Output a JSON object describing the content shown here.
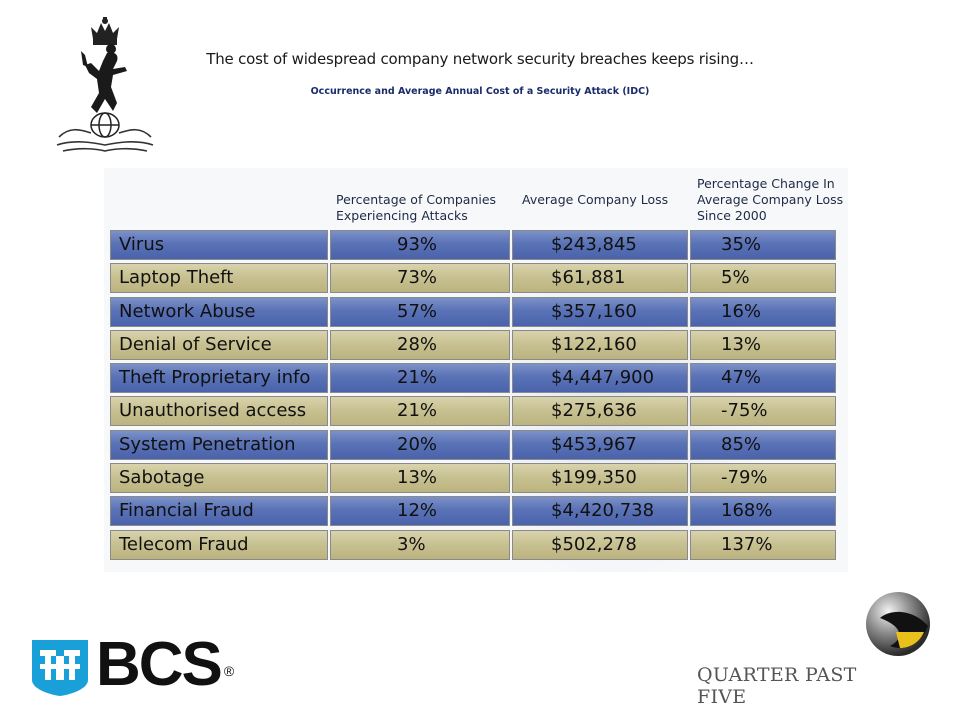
{
  "slide": {
    "title": "The cost of widespread company network security breaches keeps rising…",
    "subtitle": "Occurrence and Average Annual Cost of a Security Attack (IDC)"
  },
  "table": {
    "headers": [
      "Percentage of Companies Experiencing Attacks",
      "Average Company Loss",
      "Percentage Change In Average Company Loss Since 2000"
    ],
    "rows": [
      {
        "name": "Virus",
        "pct": "93%",
        "loss": "$243,845",
        "change": "35%",
        "color": "blue"
      },
      {
        "name": "Laptop Theft",
        "pct": "73%",
        "loss": "$61,881",
        "change": "5%",
        "color": "tan"
      },
      {
        "name": "Network Abuse",
        "pct": "57%",
        "loss": "$357,160",
        "change": "16%",
        "color": "blue"
      },
      {
        "name": "Denial of Service",
        "pct": "28%",
        "loss": "$122,160",
        "change": "13%",
        "color": "tan"
      },
      {
        "name": "Theft Proprietary info",
        "pct": "21%",
        "loss": "$4,447,900",
        "change": "47%",
        "color": "blue"
      },
      {
        "name": "Unauthorised access",
        "pct": "21%",
        "loss": "$275,636",
        "change": "-75%",
        "color": "tan"
      },
      {
        "name": "System Penetration",
        "pct": "20%",
        "loss": "$453,967",
        "change": "85%",
        "color": "blue"
      },
      {
        "name": "Sabotage",
        "pct": "13%",
        "loss": "$199,350",
        "change": "-79%",
        "color": "tan"
      },
      {
        "name": "Financial Fraud",
        "pct": "12%",
        "loss": "$4,420,738",
        "change": "168%",
        "color": "blue"
      },
      {
        "name": "Telecom Fraud",
        "pct": "3%",
        "loss": "$502,278",
        "change": "137%",
        "color": "tan"
      }
    ]
  },
  "logos": {
    "crest_icon": "royal-signals-crest-icon",
    "bcs_text": "BCS",
    "bcs_registered": "®",
    "bcs_color": "#1aa0d8",
    "qpf_text": "QUARTER PAST FIVE",
    "qpf_icon": "sphere-logo-icon"
  },
  "colors": {
    "row_blue": "#5a72b6",
    "row_tan": "#c8c192",
    "header_text": "#1e2a45"
  }
}
